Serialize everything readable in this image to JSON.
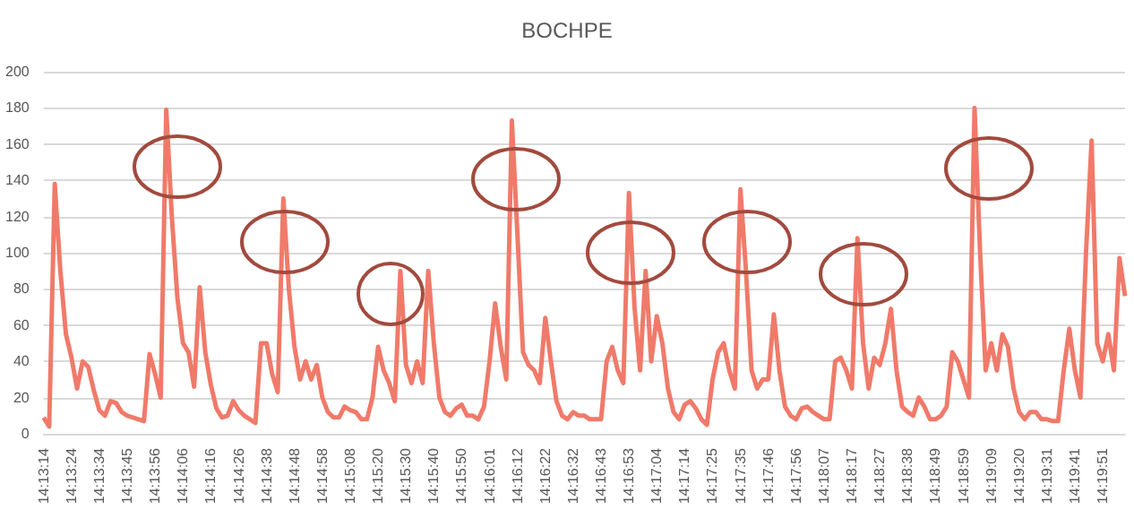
{
  "chart_data": {
    "type": "line",
    "title": "BOCHPE",
    "categories": [
      "14:13:14",
      null,
      null,
      null,
      null,
      "14:13:24",
      null,
      null,
      null,
      null,
      "14:13:34",
      null,
      null,
      null,
      null,
      "14:13:45",
      null,
      null,
      null,
      null,
      "14:13:56",
      null,
      null,
      null,
      null,
      "14:14:06",
      null,
      null,
      null,
      null,
      "14:14:16",
      null,
      null,
      null,
      null,
      "14:14:26",
      null,
      null,
      null,
      null,
      "14:14:38",
      null,
      null,
      null,
      null,
      "14:14:48",
      null,
      null,
      null,
      null,
      "14:14:58",
      null,
      null,
      null,
      null,
      "14:15:08",
      null,
      null,
      null,
      null,
      "14:15:20",
      null,
      null,
      null,
      null,
      "14:15:30",
      null,
      null,
      null,
      null,
      "14:15:40",
      null,
      null,
      null,
      null,
      "14:15:50",
      null,
      null,
      null,
      null,
      "14:16:01",
      null,
      null,
      null,
      null,
      "14:16:12",
      null,
      null,
      null,
      null,
      "14:16:22",
      null,
      null,
      null,
      null,
      "14:16:32",
      null,
      null,
      null,
      null,
      "14:16:43",
      null,
      null,
      null,
      null,
      "14:16:53",
      null,
      null,
      null,
      null,
      "14:17:04",
      null,
      null,
      null,
      null,
      "14:17:14",
      null,
      null,
      null,
      null,
      "14:17:25",
      null,
      null,
      null,
      null,
      "14:17:35",
      null,
      null,
      null,
      null,
      "14:17:46",
      null,
      null,
      null,
      null,
      "14:17:56",
      null,
      null,
      null,
      null,
      "14:18:07",
      null,
      null,
      null,
      null,
      "14:18:17",
      null,
      null,
      null,
      null,
      "14:18:27",
      null,
      null,
      null,
      null,
      "14:18:38",
      null,
      null,
      null,
      null,
      "14:18:49",
      null,
      null,
      null,
      null,
      "14:18:59",
      null,
      null,
      null,
      null,
      "14:19:09",
      null,
      null,
      null,
      null,
      "14:19:20",
      null,
      null,
      null,
      null,
      "14:19:31",
      null,
      null,
      null,
      null,
      "14:19:41",
      null,
      null,
      null,
      null,
      "14:19:51",
      null,
      null,
      null,
      null
    ],
    "series": [
      {
        "color": "#f07a6a",
        "values": [
          9,
          4,
          138,
          90,
          55,
          42,
          25,
          40,
          37,
          24,
          13,
          10,
          18,
          17,
          12,
          10,
          9,
          8,
          7,
          44,
          33,
          20,
          179,
          120,
          75,
          50,
          45,
          26,
          81,
          45,
          27,
          14,
          9,
          10,
          18,
          13,
          10,
          8,
          6,
          50,
          50,
          33,
          23,
          130,
          80,
          48,
          30,
          40,
          30,
          38,
          20,
          12,
          9,
          9,
          15,
          13,
          12,
          8,
          8,
          20,
          48,
          35,
          28,
          18,
          90,
          38,
          28,
          40,
          28,
          90,
          50,
          20,
          12,
          10,
          14,
          16,
          10,
          10,
          8,
          15,
          40,
          72,
          48,
          30,
          173,
          110,
          45,
          38,
          35,
          28,
          64,
          40,
          18,
          10,
          8,
          12,
          10,
          10,
          8,
          8,
          8,
          40,
          48,
          35,
          28,
          133,
          70,
          35,
          90,
          40,
          65,
          50,
          25,
          12,
          8,
          16,
          18,
          14,
          8,
          5,
          30,
          45,
          50,
          35,
          25,
          135,
          90,
          35,
          25,
          30,
          30,
          66,
          35,
          15,
          10,
          8,
          14,
          15,
          12,
          10,
          8,
          8,
          40,
          42,
          35,
          25,
          108,
          50,
          25,
          42,
          38,
          50,
          69,
          35,
          15,
          12,
          10,
          20,
          15,
          8,
          8,
          10,
          15,
          45,
          40,
          30,
          20,
          180,
          100,
          35,
          50,
          35,
          55,
          48,
          25,
          12,
          8,
          12,
          12,
          8,
          8,
          7,
          7,
          35,
          58,
          35,
          20,
          100,
          162,
          50,
          40,
          55,
          35,
          97,
          76
        ]
      }
    ],
    "ylim": [
      0,
      200
    ],
    "yticks": [
      0,
      20,
      40,
      60,
      80,
      100,
      120,
      140,
      160,
      180,
      200
    ],
    "grid": "y",
    "marker": "none",
    "line_style": "solid"
  }
}
